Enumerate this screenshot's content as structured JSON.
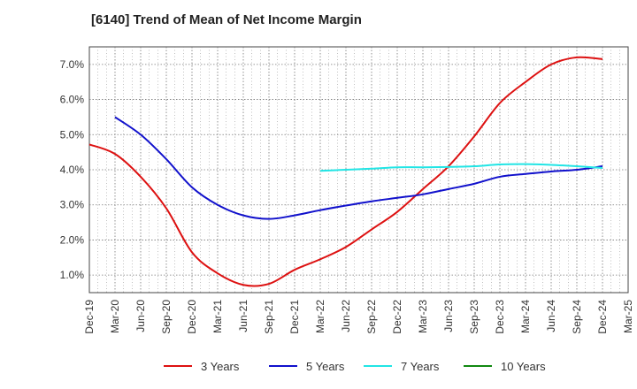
{
  "title": "[6140]  Trend of Mean of Net Income Margin",
  "chart_data": {
    "type": "line",
    "title": "[6140]  Trend of Mean of Net Income Margin",
    "xlabel": "",
    "ylabel": "",
    "x_tick_labels": [
      "Dec-19",
      "Mar-20",
      "Jun-20",
      "Sep-20",
      "Dec-20",
      "Mar-21",
      "Jun-21",
      "Sep-21",
      "Dec-21",
      "Mar-22",
      "Jun-22",
      "Sep-22",
      "Dec-22",
      "Mar-23",
      "Jun-23",
      "Sep-23",
      "Dec-23",
      "Mar-24",
      "Jun-24",
      "Sep-24",
      "Dec-24",
      "Mar-25"
    ],
    "y_tick_labels": [
      "1.0%",
      "2.0%",
      "3.0%",
      "4.0%",
      "5.0%",
      "6.0%",
      "7.0%"
    ],
    "y_ticks": [
      1.0,
      2.0,
      3.0,
      4.0,
      5.0,
      6.0,
      7.0
    ],
    "ylim": [
      0.5,
      7.5
    ],
    "grid": true,
    "legend_position": "bottom",
    "series": [
      {
        "name": "3 Years",
        "color": "#dd1111",
        "x": [
          "Dec-19",
          "Mar-20",
          "Jun-20",
          "Sep-20",
          "Dec-20",
          "Mar-21",
          "Jun-21",
          "Sep-21",
          "Dec-21",
          "Mar-22",
          "Jun-22",
          "Sep-22",
          "Dec-22",
          "Mar-23",
          "Jun-23",
          "Sep-23",
          "Dec-23",
          "Mar-24",
          "Jun-24",
          "Sep-24",
          "Dec-24"
        ],
        "values": [
          4.72,
          4.45,
          3.8,
          2.9,
          1.65,
          1.05,
          0.72,
          0.75,
          1.15,
          1.45,
          1.8,
          2.3,
          2.8,
          3.45,
          4.1,
          4.95,
          5.9,
          6.5,
          7.0,
          7.2,
          7.15
        ]
      },
      {
        "name": "5 Years",
        "color": "#1111cc",
        "x": [
          "Mar-20",
          "Jun-20",
          "Sep-20",
          "Dec-20",
          "Mar-21",
          "Jun-21",
          "Sep-21",
          "Dec-21",
          "Mar-22",
          "Jun-22",
          "Sep-22",
          "Dec-22",
          "Mar-23",
          "Jun-23",
          "Sep-23",
          "Dec-23",
          "Mar-24",
          "Jun-24",
          "Sep-24",
          "Dec-24"
        ],
        "values": [
          5.5,
          5.0,
          4.3,
          3.5,
          3.0,
          2.7,
          2.6,
          2.7,
          2.85,
          2.98,
          3.1,
          3.2,
          3.3,
          3.45,
          3.6,
          3.8,
          3.88,
          3.95,
          4.0,
          4.1
        ]
      },
      {
        "name": "7 Years",
        "color": "#22e5e5",
        "x": [
          "Mar-22",
          "Jun-22",
          "Sep-22",
          "Dec-22",
          "Mar-23",
          "Jun-23",
          "Sep-23",
          "Dec-23",
          "Mar-24",
          "Jun-24",
          "Sep-24",
          "Dec-24"
        ],
        "values": [
          3.97,
          4.0,
          4.03,
          4.07,
          4.07,
          4.08,
          4.1,
          4.15,
          4.16,
          4.14,
          4.1,
          4.05
        ]
      },
      {
        "name": "10 Years",
        "color": "#118811",
        "x": [],
        "values": []
      }
    ]
  }
}
